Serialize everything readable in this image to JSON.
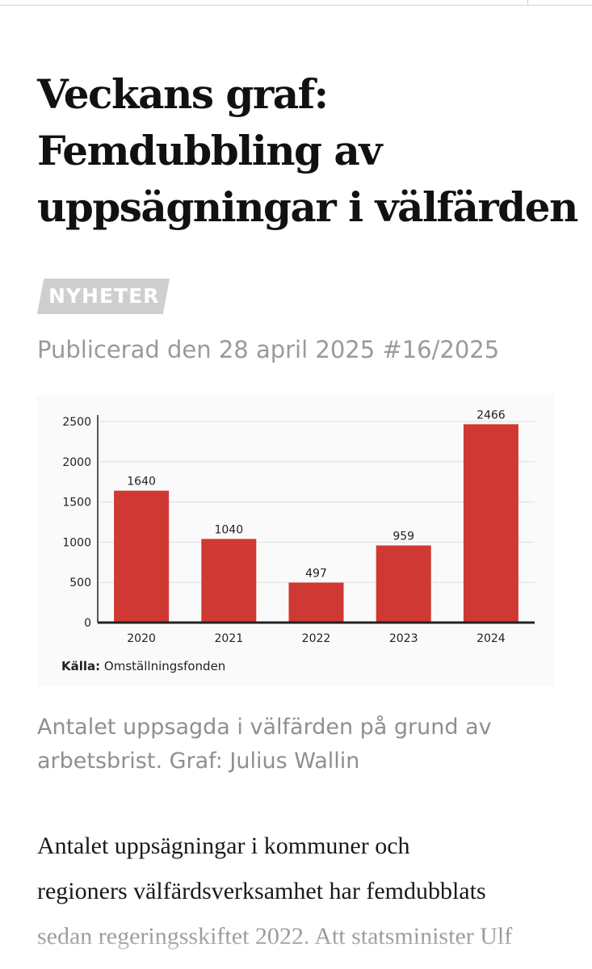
{
  "article": {
    "headline_lines": [
      "Veckans graf:",
      "Femdubbling av",
      "uppsägningar i välfärden"
    ],
    "section": "NYHETER",
    "published": "Publicerad den 28 april 2025 #16/2025",
    "caption": "Antalet uppsagda i välfärden på grund av arbetsbrist. Graf: Julius Wallin",
    "body_lines": [
      "Antalet uppsägningar i kommuner och",
      "regioners välfärdsverksamhet har femdubblats",
      "sedan regeringsskiftet 2022. Att statsminister Ulf"
    ]
  },
  "chart_data": {
    "type": "bar",
    "categories": [
      "2020",
      "2021",
      "2022",
      "2023",
      "2024"
    ],
    "values": [
      1640,
      1040,
      497,
      959,
      2466
    ],
    "ylim": [
      0,
      2500
    ],
    "yticks": [
      0,
      500,
      1000,
      1500,
      2000,
      2500
    ],
    "grid": true,
    "bar_color": "#d03833",
    "source_label": "Källa:",
    "source_name": "Omställningsfonden"
  },
  "colors": {
    "tag_bg": "#cfcfcf",
    "muted_text": "#9a9a9a"
  }
}
